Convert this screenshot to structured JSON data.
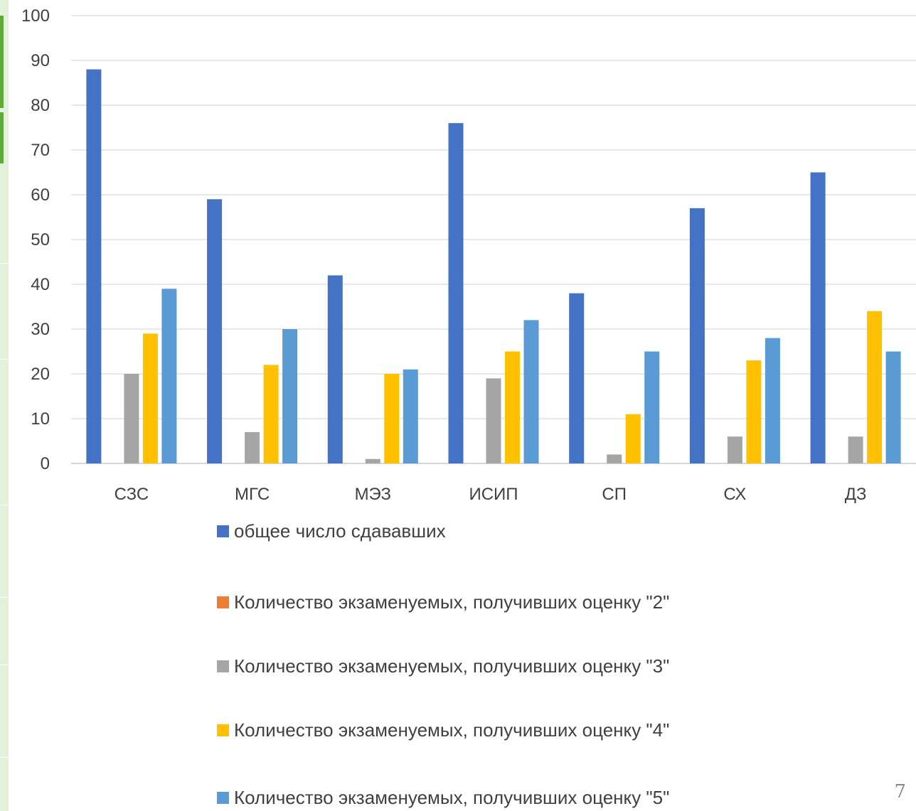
{
  "page_number": "7",
  "chart_data": {
    "type": "bar",
    "title": "",
    "xlabel": "",
    "ylabel": "",
    "ylim": [
      0,
      100
    ],
    "yticks": [
      0,
      10,
      20,
      30,
      40,
      50,
      60,
      70,
      80,
      90,
      100
    ],
    "grid": true,
    "legend_placement": "bottom",
    "categories": [
      "СЗС",
      "МГС",
      "МЭЗ",
      "ИСИП",
      "СП",
      "СХ",
      "ДЗ"
    ],
    "series": [
      {
        "name": "общее число сдававших",
        "color": "#4472c4",
        "values": [
          88,
          59,
          42,
          76,
          38,
          57,
          65
        ]
      },
      {
        "name": "Количество экзаменуемых, получивших оценку \"2\"",
        "color": "#ed7d31",
        "values": [
          0,
          0,
          0,
          0,
          0,
          0,
          0
        ]
      },
      {
        "name": "Количество экзаменуемых, получивших оценку \"3\"",
        "color": "#a5a5a5",
        "values": [
          20,
          7,
          1,
          19,
          2,
          6,
          6
        ]
      },
      {
        "name": "Количество экзаменуемых, получивших оценку \"4\"",
        "color": "#ffc000",
        "values": [
          29,
          22,
          20,
          25,
          11,
          23,
          34
        ]
      },
      {
        "name": "Количество экзаменуемых, получивших оценку \"5\"",
        "color": "#5b9bd5",
        "values": [
          39,
          30,
          21,
          32,
          25,
          28,
          25
        ]
      }
    ]
  }
}
